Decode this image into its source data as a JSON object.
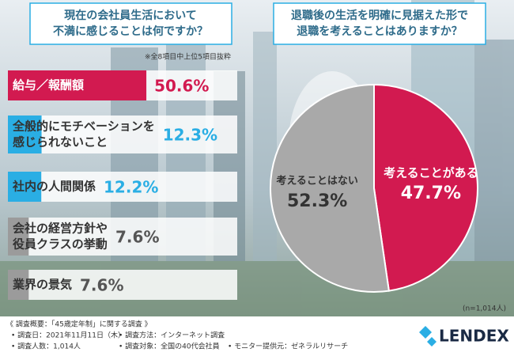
{
  "chart_data": [
    {
      "type": "bar",
      "title": [
        "現在の会社員生活において",
        "不満に感じることは何ですか？"
      ],
      "note": "※全8項目中上位5項目抜粋",
      "categories": [
        [
          "給与／報酬額"
        ],
        [
          "全般的にモチベーションを",
          "感じられないこと"
        ],
        [
          "社内の人間関係"
        ],
        [
          "会社の経営方針や",
          "役員クラスの挙動"
        ],
        [
          "業界の景気"
        ]
      ],
      "values": [
        50.6,
        12.3,
        12.2,
        7.6,
        7.6
      ],
      "value_labels": [
        "50.6%",
        "12.3%",
        "12.2%",
        "7.6%",
        "7.6%"
      ],
      "colors": [
        "#d21a50",
        "#2aaee4",
        "#2aaee4",
        "#9b9b9b",
        "#9b9b9b"
      ]
    },
    {
      "type": "pie",
      "title": [
        "退職後の生活を明確に見据えた形で",
        "退職を考えることはありますか？"
      ],
      "categories": [
        "考えることがある",
        "考えることはない"
      ],
      "values": [
        47.7,
        52.3
      ],
      "value_labels": [
        "47.7%",
        "52.3%"
      ],
      "colors": [
        "#d21a50",
        "#a9a9a9"
      ],
      "note": "(n=1,014人)"
    }
  ],
  "footer": {
    "heading": "《 調査概要：「45歳定年制」に関する調査 》",
    "items": [
      "• 調査日：2021年11月11日（木）",
      "• 調査方法：インターネット調査",
      "• 調査人数：1,014人",
      "• 調査対象：全国の40代会社員",
      "• モニター提供元：ゼネラルリサーチ"
    ]
  },
  "logo": "LENDEX"
}
